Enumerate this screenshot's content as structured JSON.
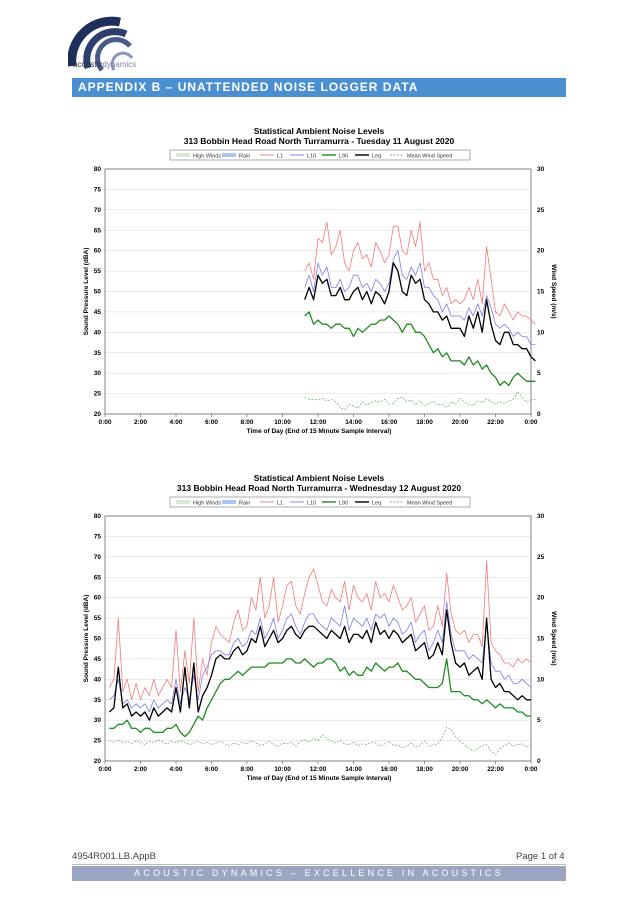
{
  "header": {
    "logo_text_a": "acoustic",
    "logo_text_b": "dynamics",
    "banner": "APPENDIX B – UNATTENDED NOISE LOGGER DATA"
  },
  "footer": {
    "doc_ref": "4954R001.LB.AppB",
    "page": "Page 1 of 4",
    "tagline": "ACOUSTIC DYNAMICS – EXCELLENCE IN ACOUSTICS"
  },
  "colors": {
    "L1": "#f07a7a",
    "L10": "#7d7de8",
    "L90": "#1e8c1e",
    "Leq": "#000000",
    "wind": "#4aa04a",
    "rain": "#a8c8f0",
    "high_winds": "#d8ead0",
    "banner": "#4a90d0"
  },
  "legend": [
    "High Winds",
    "Rain",
    "L1",
    "L10",
    "L90",
    "Leq",
    "Mean Wind Speed"
  ],
  "chart_data": [
    {
      "type": "line",
      "title": "Statistical Ambient Noise Levels",
      "subtitle": "313 Bobbin Head Road North Turramurra - Tuesday 11 August 2020",
      "xlabel": "Time of Day (End of 15 Minute Sample Interval)",
      "ylabel": "Sound Pressure Level (dBA)",
      "y2label": "Wind Speed (m/s)",
      "x_ticks": [
        "0:00",
        "2:00",
        "4:00",
        "6:00",
        "8:00",
        "10:00",
        "12:00",
        "14:00",
        "16:00",
        "18:00",
        "20:00",
        "22:00",
        "0:00"
      ],
      "y_ticks": [
        20,
        25,
        30,
        35,
        40,
        45,
        50,
        55,
        60,
        65,
        70,
        75,
        80
      ],
      "y2_ticks": [
        0,
        5,
        10,
        15,
        20,
        25,
        30
      ],
      "ylim": [
        20,
        80
      ],
      "y2lim": [
        0,
        30
      ],
      "xlim_hours": [
        0,
        24
      ],
      "grid": true,
      "legend_position": "top",
      "start_hour": 11,
      "interval_minutes": 15,
      "series": [
        {
          "name": "L1",
          "values": [
            55,
            57,
            53,
            63,
            62,
            67,
            59,
            61,
            65,
            57,
            55,
            60,
            62,
            58,
            59,
            56,
            62,
            60,
            57,
            59,
            66,
            66,
            60,
            59,
            65,
            61,
            67,
            55,
            57,
            53,
            53,
            49,
            51,
            47,
            48,
            47,
            48,
            51,
            48,
            53,
            47,
            61,
            53,
            45,
            44,
            47,
            45,
            43,
            45,
            44,
            44,
            43,
            42
          ]
        },
        {
          "name": "L10",
          "values": [
            51,
            54,
            50,
            57,
            54,
            56,
            51,
            51,
            53,
            50,
            51,
            54,
            54,
            51,
            52,
            50,
            53,
            52,
            50,
            52,
            58,
            60,
            54,
            53,
            56,
            54,
            57,
            51,
            51,
            49,
            48,
            45,
            47,
            44,
            44,
            44,
            43,
            46,
            44,
            47,
            44,
            49,
            46,
            42,
            41,
            42,
            41,
            39,
            40,
            39,
            39,
            37,
            37
          ]
        },
        {
          "name": "L90",
          "values": [
            44,
            45,
            42,
            43,
            42,
            42,
            41,
            42,
            42,
            41,
            41,
            39,
            41,
            40,
            41,
            42,
            42,
            43,
            43,
            44,
            43,
            42,
            40,
            42,
            42,
            40,
            40,
            39,
            37,
            35,
            36,
            34,
            35,
            33,
            33,
            33,
            32,
            34,
            32,
            33,
            31,
            32,
            30,
            29,
            27,
            28,
            27,
            29,
            30,
            29,
            28,
            28,
            28
          ]
        },
        {
          "name": "Leq",
          "values": [
            48,
            51,
            48,
            54,
            52,
            53,
            49,
            49,
            51,
            48,
            48,
            50,
            51,
            48,
            50,
            47,
            50,
            49,
            47,
            50,
            57,
            55,
            50,
            49,
            54,
            52,
            53,
            48,
            47,
            45,
            45,
            43,
            44,
            41,
            41,
            41,
            39,
            44,
            41,
            45,
            40,
            48,
            42,
            38,
            37,
            40,
            40,
            37,
            37,
            36,
            36,
            34,
            33
          ]
        },
        {
          "name": "Mean Wind Speed",
          "axis": "y2",
          "values": [
            2.0,
            1.8,
            1.8,
            1.7,
            1.9,
            1.6,
            1.8,
            1.5,
            0.8,
            0.5,
            1.2,
            1.0,
            0.7,
            1.5,
            1.1,
            1.4,
            1.6,
            1.5,
            1.8,
            1.2,
            1.3,
            1.9,
            2.1,
            1.5,
            1.7,
            1.1,
            1.6,
            1.0,
            1.3,
            1.5,
            1.1,
            1.2,
            0.8,
            1.5,
            1.2,
            1.9,
            1.5,
            1.1,
            1.0,
            1.6,
            1.4,
            1.9,
            1.5,
            1.2,
            1.5,
            1.3,
            1.6,
            1.8,
            2.8,
            2.0,
            1.5,
            1.7,
            1.8
          ]
        }
      ]
    },
    {
      "type": "line",
      "title": "Statistical Ambient Noise Levels",
      "subtitle": "313 Bobbin Head Road North Turramurra - Wednesday 12 August 2020",
      "xlabel": "Time of Day (End of 15 Minute Sample Interval)",
      "ylabel": "Sound Pressure Level (dBA)",
      "y2label": "Wind Speed (m/s)",
      "x_ticks": [
        "0:00",
        "2:00",
        "4:00",
        "6:00",
        "8:00",
        "10:00",
        "12:00",
        "14:00",
        "16:00",
        "18:00",
        "20:00",
        "22:00",
        "0:00"
      ],
      "y_ticks": [
        20,
        25,
        30,
        35,
        40,
        45,
        50,
        55,
        60,
        65,
        70,
        75,
        80
      ],
      "y2_ticks": [
        0,
        5,
        10,
        15,
        20,
        25,
        30
      ],
      "ylim": [
        20,
        80
      ],
      "y2lim": [
        0,
        30
      ],
      "xlim_hours": [
        0,
        24
      ],
      "grid": true,
      "legend_position": "top",
      "start_hour": 0,
      "interval_minutes": 15,
      "series": [
        {
          "name": "L1",
          "values": [
            38,
            40,
            55,
            37,
            40,
            35,
            39,
            35,
            38,
            36,
            40,
            36,
            38,
            40,
            38,
            52,
            37,
            47,
            39,
            55,
            37,
            45,
            41,
            49,
            53,
            51,
            50,
            49,
            54,
            57,
            52,
            53,
            60,
            57,
            65,
            55,
            58,
            65,
            54,
            58,
            63,
            64,
            58,
            56,
            61,
            65,
            67,
            63,
            59,
            58,
            62,
            60,
            59,
            64,
            57,
            63,
            60,
            59,
            61,
            57,
            64,
            60,
            61,
            59,
            63,
            60,
            57,
            58,
            60,
            54,
            56,
            58,
            52,
            53,
            58,
            53,
            66,
            56,
            52,
            51,
            52,
            49,
            51,
            51,
            48,
            69,
            49,
            47,
            46,
            44,
            44,
            43,
            45,
            44,
            45,
            44
          ]
        },
        {
          "name": "L10",
          "values": [
            35,
            36,
            40,
            34,
            35,
            33,
            34,
            33,
            34,
            32,
            35,
            33,
            34,
            35,
            34,
            40,
            34,
            38,
            35,
            41,
            35,
            41,
            43,
            46,
            47,
            47,
            46,
            46,
            49,
            50,
            48,
            49,
            52,
            51,
            55,
            50,
            52,
            55,
            50,
            52,
            55,
            56,
            53,
            51,
            54,
            56,
            56,
            54,
            53,
            52,
            55,
            54,
            53,
            58,
            52,
            55,
            54,
            53,
            55,
            52,
            56,
            55,
            56,
            53,
            55,
            54,
            51,
            52,
            54,
            49,
            51,
            52,
            47,
            49,
            52,
            49,
            59,
            51,
            47,
            47,
            47,
            45,
            46,
            45,
            44,
            54,
            44,
            42,
            42,
            40,
            41,
            39,
            39,
            40,
            39,
            38
          ]
        },
        {
          "name": "L90",
          "values": [
            28,
            28,
            29,
            29,
            30,
            28,
            28,
            27,
            28,
            28,
            27,
            27,
            27,
            28,
            28,
            29,
            27,
            26,
            27,
            29,
            31,
            30,
            33,
            35,
            37,
            39,
            40,
            40,
            41,
            42,
            41,
            42,
            43,
            43,
            43,
            43,
            44,
            44,
            44,
            44,
            45,
            45,
            44,
            44,
            45,
            44,
            43,
            44,
            44,
            45,
            45,
            44,
            42,
            43,
            41,
            42,
            41,
            41,
            43,
            42,
            44,
            43,
            42,
            43,
            43,
            44,
            42,
            42,
            41,
            40,
            40,
            39,
            38,
            38,
            38,
            39,
            45,
            37,
            37,
            37,
            36,
            36,
            35,
            35,
            34,
            35,
            34,
            33,
            34,
            33,
            33,
            33,
            32,
            32,
            31,
            31
          ]
        },
        {
          "name": "Leq",
          "values": [
            32,
            33,
            43,
            33,
            34,
            31,
            32,
            31,
            32,
            30,
            33,
            31,
            32,
            33,
            32,
            38,
            32,
            43,
            33,
            44,
            32,
            36,
            38,
            41,
            45,
            46,
            45,
            45,
            47,
            48,
            46,
            47,
            50,
            49,
            53,
            48,
            50,
            52,
            49,
            50,
            52,
            53,
            51,
            50,
            52,
            53,
            53,
            52,
            51,
            50,
            52,
            51,
            50,
            53,
            49,
            51,
            51,
            50,
            52,
            49,
            54,
            51,
            52,
            50,
            52,
            51,
            49,
            50,
            51,
            47,
            48,
            49,
            45,
            46,
            49,
            46,
            57,
            49,
            44,
            43,
            44,
            41,
            42,
            43,
            40,
            55,
            40,
            38,
            39,
            37,
            37,
            36,
            35,
            36,
            35,
            35
          ]
        },
        {
          "name": "Mean Wind Speed",
          "axis": "y2",
          "values": [
            2.5,
            2.3,
            2.6,
            2.2,
            2.4,
            2.1,
            2.5,
            2.3,
            2.0,
            2.4,
            2.2,
            2.6,
            2.3,
            2.1,
            2.4,
            2.2,
            2.5,
            2.3,
            2.0,
            2.2,
            2.4,
            2.1,
            2.3,
            2.0,
            2.2,
            2.4,
            2.1,
            1.9,
            2.2,
            2.0,
            2.3,
            2.1,
            2.5,
            2.2,
            1.9,
            2.1,
            2.4,
            2.0,
            1.8,
            2.2,
            2.1,
            2.3,
            1.8,
            2.4,
            2.6,
            2.3,
            2.8,
            2.5,
            3.2,
            2.7,
            2.4,
            2.2,
            2.5,
            2.1,
            2.0,
            2.3,
            1.9,
            2.1,
            2.0,
            2.3,
            2.2,
            1.8,
            2.1,
            2.4,
            1.9,
            2.0,
            1.6,
            1.8,
            2.2,
            1.7,
            1.9,
            2.5,
            1.8,
            2.0,
            2.1,
            2.9,
            4.2,
            3.8,
            3.0,
            2.4,
            2.0,
            1.6,
            1.2,
            1.5,
            1.9,
            2.0,
            1.2,
            0.8,
            1.5,
            1.9,
            2.2,
            1.8,
            2.0,
            2.1,
            1.7,
            1.9
          ]
        }
      ]
    }
  ]
}
